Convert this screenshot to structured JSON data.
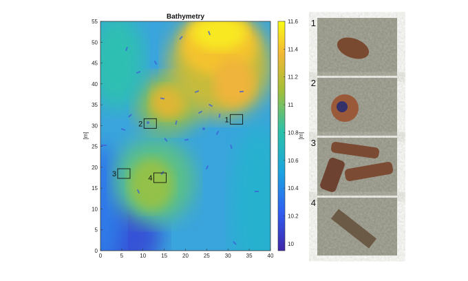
{
  "chart_data": {
    "type": "heatmap",
    "title": "Bathymetry",
    "xlabel": "",
    "ylabel": "[m]",
    "xlim": [
      0,
      40
    ],
    "ylim": [
      0,
      55
    ],
    "xticks": [
      0,
      5,
      10,
      15,
      20,
      25,
      30,
      35,
      40
    ],
    "yticks": [
      0,
      5,
      10,
      15,
      20,
      25,
      30,
      35,
      40,
      45,
      50,
      55
    ],
    "colorbar": {
      "label": "[m]",
      "range": [
        9.95,
        11.6
      ],
      "ticks": [
        10,
        10.2,
        10.4,
        10.6,
        10.8,
        11,
        11.2,
        11.4,
        11.6
      ],
      "colors": [
        "#3e26a8",
        "#2f5ef3",
        "#1ba3e0",
        "#2cc1a9",
        "#a3bf39",
        "#f3b834",
        "#f9fb15"
      ]
    },
    "sites": [
      {
        "label": "1",
        "x": 32,
        "y": 31.5
      },
      {
        "label": "2",
        "x": 11.7,
        "y": 30.5
      },
      {
        "label": "3",
        "x": 5.5,
        "y": 18.5
      },
      {
        "label": "4",
        "x": 14,
        "y": 17.5
      }
    ],
    "grid": false
  },
  "photos": [
    {
      "label": "1",
      "icon": "cylindrical-object-photo"
    },
    {
      "label": "2",
      "icon": "round-object-photo"
    },
    {
      "label": "3",
      "icon": "stacked-cylinders-photo"
    },
    {
      "label": "4",
      "icon": "flat-bar-object-photo"
    }
  ]
}
